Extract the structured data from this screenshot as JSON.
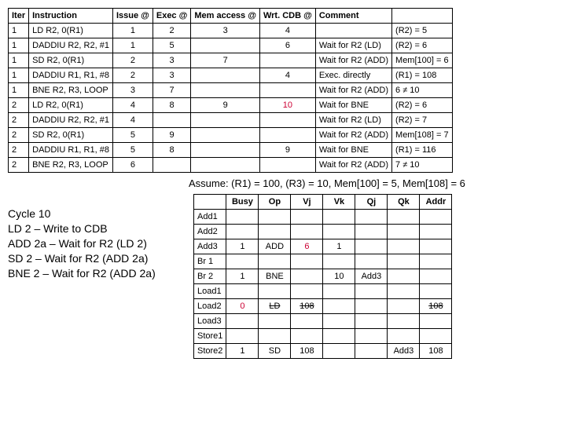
{
  "main": {
    "headers": [
      "Iter",
      "Instruction",
      "Issue @",
      "Exec @",
      "Mem access @",
      "Wrt. CDB @",
      "Comment",
      ""
    ],
    "rows": [
      {
        "iter": "1",
        "instr": "LD R2, 0(R1)",
        "issue": "1",
        "exec": "2",
        "mem": "3",
        "wrt": "4",
        "comment": "",
        "res": "(R2) = 5"
      },
      {
        "iter": "1",
        "instr": "DADDIU R2, R2, #1",
        "issue": "1",
        "exec": "5",
        "mem": "",
        "wrt": "6",
        "comment": "Wait for R2 (LD)",
        "res": "(R2) = 6"
      },
      {
        "iter": "1",
        "instr": "SD R2, 0(R1)",
        "issue": "2",
        "exec": "3",
        "mem": "7",
        "wrt": "",
        "comment": "Wait for R2 (ADD)",
        "res": "Mem[100] = 6"
      },
      {
        "iter": "1",
        "instr": "DADDIU R1, R1, #8",
        "issue": "2",
        "exec": "3",
        "mem": "",
        "wrt": "4",
        "comment": "Exec. directly",
        "res": "(R1) = 108"
      },
      {
        "iter": "1",
        "instr": "BNE R2, R3, LOOP",
        "issue": "3",
        "exec": "7",
        "mem": "",
        "wrt": "",
        "comment": "Wait for R2 (ADD)",
        "res": "6 ≠ 10"
      },
      {
        "iter": "2",
        "instr": "LD R2, 0(R1)",
        "issue": "4",
        "exec": "8",
        "mem": "9",
        "wrt": "10",
        "wrtRed": true,
        "comment": "Wait for BNE",
        "res": "(R2) = 6"
      },
      {
        "iter": "2",
        "instr": "DADDIU R2, R2, #1",
        "issue": "4",
        "exec": "",
        "mem": "",
        "wrt": "",
        "comment": "Wait for R2 (LD)",
        "res": "(R2) = 7"
      },
      {
        "iter": "2",
        "instr": "SD R2, 0(R1)",
        "issue": "5",
        "exec": "9",
        "mem": "",
        "wrt": "",
        "comment": "Wait for R2 (ADD)",
        "res": "Mem[108] = 7"
      },
      {
        "iter": "2",
        "instr": "DADDIU R1, R1, #8",
        "issue": "5",
        "exec": "8",
        "mem": "",
        "wrt": "9",
        "comment": "Wait for BNE",
        "res": "(R1) = 116"
      },
      {
        "iter": "2",
        "instr": "BNE R2, R3, LOOP",
        "issue": "6",
        "exec": "",
        "mem": "",
        "wrt": "",
        "comment": "Wait for R2 (ADD)",
        "res": "7 ≠ 10"
      }
    ]
  },
  "assume": "Assume: (R1) = 100, (R3) = 10, Mem[100] = 5, Mem[108] = 6",
  "cycle": {
    "title": "Cycle 10",
    "lines": [
      "LD 2 – Write to CDB",
      "ADD 2a – Wait for R2 (LD 2)",
      "SD 2 – Wait for R2 (ADD 2a)",
      "BNE 2 – Wait for R2 (ADD 2a)"
    ]
  },
  "rs": {
    "headers": [
      "",
      "Busy",
      "Op",
      "Vj",
      "Vk",
      "Qj",
      "Qk",
      "Addr"
    ],
    "rows": [
      {
        "name": "Add1"
      },
      {
        "name": "Add2"
      },
      {
        "name": "Add3",
        "busy": "1",
        "op": "ADD",
        "vj": "6",
        "vjRed": true,
        "vk": "1"
      },
      {
        "name": "Br 1"
      },
      {
        "name": "Br 2",
        "busy": "1",
        "op": "BNE",
        "vk": "10",
        "qj": "Add3"
      },
      {
        "name": "Load1"
      },
      {
        "name": "Load2",
        "busy": "0",
        "busyRed": true,
        "op": "LD",
        "opStrike": true,
        "vj": "108",
        "vjStrike": true,
        "addr": "108",
        "addrStrike": true
      },
      {
        "name": "Load3"
      },
      {
        "name": "Store1"
      },
      {
        "name": "Store2",
        "busy": "1",
        "op": "SD",
        "vj": "108",
        "qk": "Add3",
        "addr": "108"
      }
    ]
  }
}
